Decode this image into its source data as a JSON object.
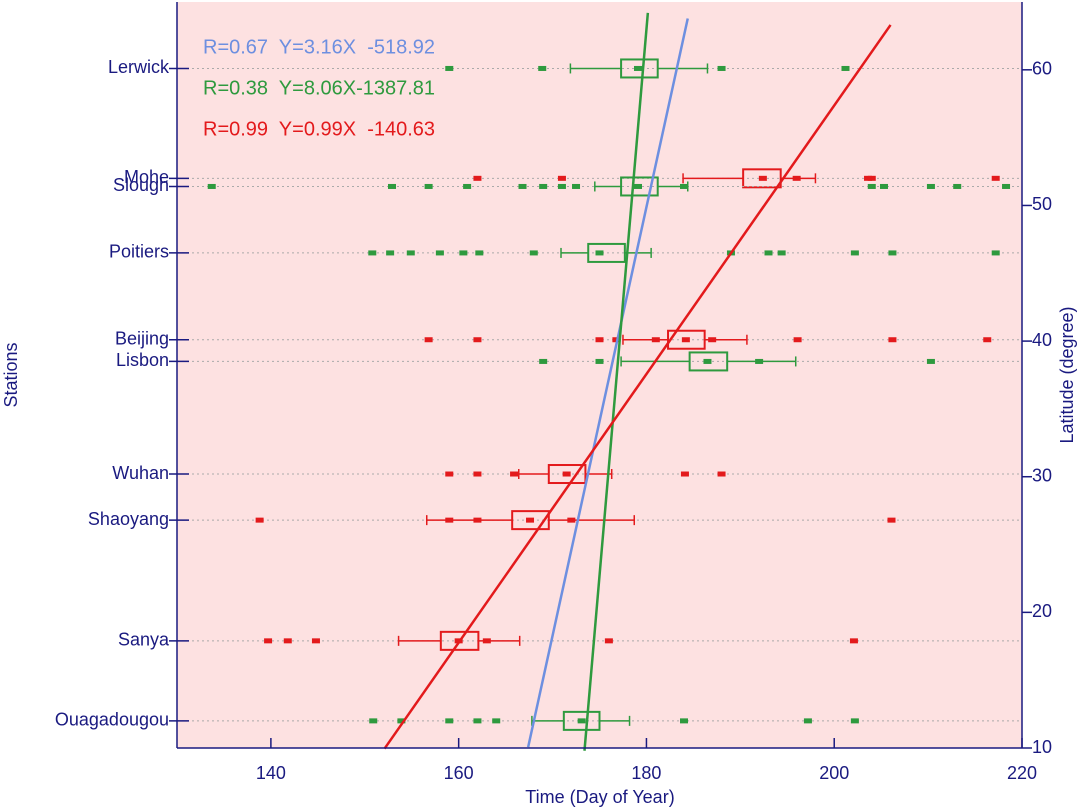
{
  "chart_data": {
    "type": "box",
    "xlabel": "Time (Day of Year)",
    "ylabel": "Stations",
    "y2label": "Latitude (degree)",
    "xlim": [
      130,
      220
    ],
    "xticks": [
      140,
      160,
      180,
      200,
      220
    ],
    "ylim": [
      10,
      65
    ],
    "yticks": [
      10,
      20,
      30,
      40,
      50,
      60
    ],
    "grid": true,
    "stations": [
      {
        "name": "Lerwick",
        "lat": 60.1,
        "color": "#2e9a3e",
        "box": [
          171.9,
          177.3,
          179.1,
          181.2,
          186.5
        ],
        "outliers": [
          159,
          168.9,
          188,
          201.2
        ]
      },
      {
        "name": "Mohe",
        "lat": 52.0,
        "color": "#e31a1c",
        "box": [
          183.9,
          190.3,
          192.4,
          194.3,
          198.0
        ],
        "outliers": [
          162,
          171,
          196,
          203.6,
          204,
          217.2
        ]
      },
      {
        "name": "Slough",
        "lat": 51.4,
        "color": "#2e9a3e",
        "box": [
          174.5,
          177.3,
          179.1,
          181.2,
          184.4
        ],
        "outliers": [
          133.7,
          152.9,
          156.8,
          160.9,
          166.8,
          169,
          171,
          172.5,
          184,
          204,
          205.3,
          210.3,
          213.1,
          218.3
        ]
      },
      {
        "name": "Poitiers",
        "lat": 46.5,
        "color": "#2e9a3e",
        "box": [
          170.9,
          173.8,
          175,
          177.7,
          180.5
        ],
        "outliers": [
          150.8,
          152.7,
          154.9,
          158,
          160.5,
          162.2,
          168,
          189,
          193,
          194.4,
          202.2,
          206.2,
          217.2
        ]
      },
      {
        "name": "Beijing",
        "lat": 40.1,
        "color": "#e31a1c",
        "box": [
          177.5,
          182.3,
          184.2,
          186.2,
          190.7
        ],
        "outliers": [
          156.8,
          162,
          175,
          176.8,
          181,
          187,
          196.1,
          206.2,
          216.3
        ]
      },
      {
        "name": "Lisbon",
        "lat": 38.5,
        "color": "#2e9a3e",
        "box": [
          177.3,
          184.6,
          186.5,
          188.6,
          195.9
        ],
        "outliers": [
          169,
          175,
          192,
          210.3
        ]
      },
      {
        "name": "Wuhan",
        "lat": 30.2,
        "color": "#e31a1c",
        "box": [
          166.4,
          169.6,
          171.5,
          173.5,
          176.3
        ],
        "outliers": [
          159,
          162,
          165.9,
          184.1,
          188
        ]
      },
      {
        "name": "Shaoyang",
        "lat": 26.8,
        "color": "#e31a1c",
        "box": [
          156.6,
          165.7,
          167.6,
          169.6,
          178.7
        ],
        "outliers": [
          138.8,
          159,
          162,
          172,
          206.1
        ]
      },
      {
        "name": "Sanya",
        "lat": 17.9,
        "color": "#e31a1c",
        "box": [
          153.6,
          158.1,
          160,
          162.1,
          166.5
        ],
        "outliers": [
          139.7,
          141.8,
          144.8,
          163,
          176,
          202.1
        ]
      },
      {
        "name": "Ouagadougou",
        "lat": 12.0,
        "color": "#2e9a3e",
        "box": [
          167.8,
          171.2,
          173.1,
          175,
          178.2
        ],
        "outliers": [
          150.9,
          153.9,
          159,
          162,
          164,
          184,
          197.2,
          202.2
        ]
      }
    ],
    "fits": [
      {
        "label": "R=0.67  Y=3.16X  -518.92",
        "color": "#6d8fe0",
        "slope": 3.16,
        "intercept": -518.92,
        "x_range": [
          167.4,
          184.4
        ]
      },
      {
        "label": "R=0.38  Y=8.06X-1387.81",
        "color": "#2e9a3e",
        "slope": 8.06,
        "intercept": -1387.81,
        "x_range": [
          173.4,
          180.15
        ]
      },
      {
        "label": "R=0.99  Y=0.99X  -140.63",
        "color": "#e31a1c",
        "slope": 0.99,
        "intercept": -140.63,
        "x_range": [
          152.1,
          206.0
        ]
      }
    ]
  }
}
